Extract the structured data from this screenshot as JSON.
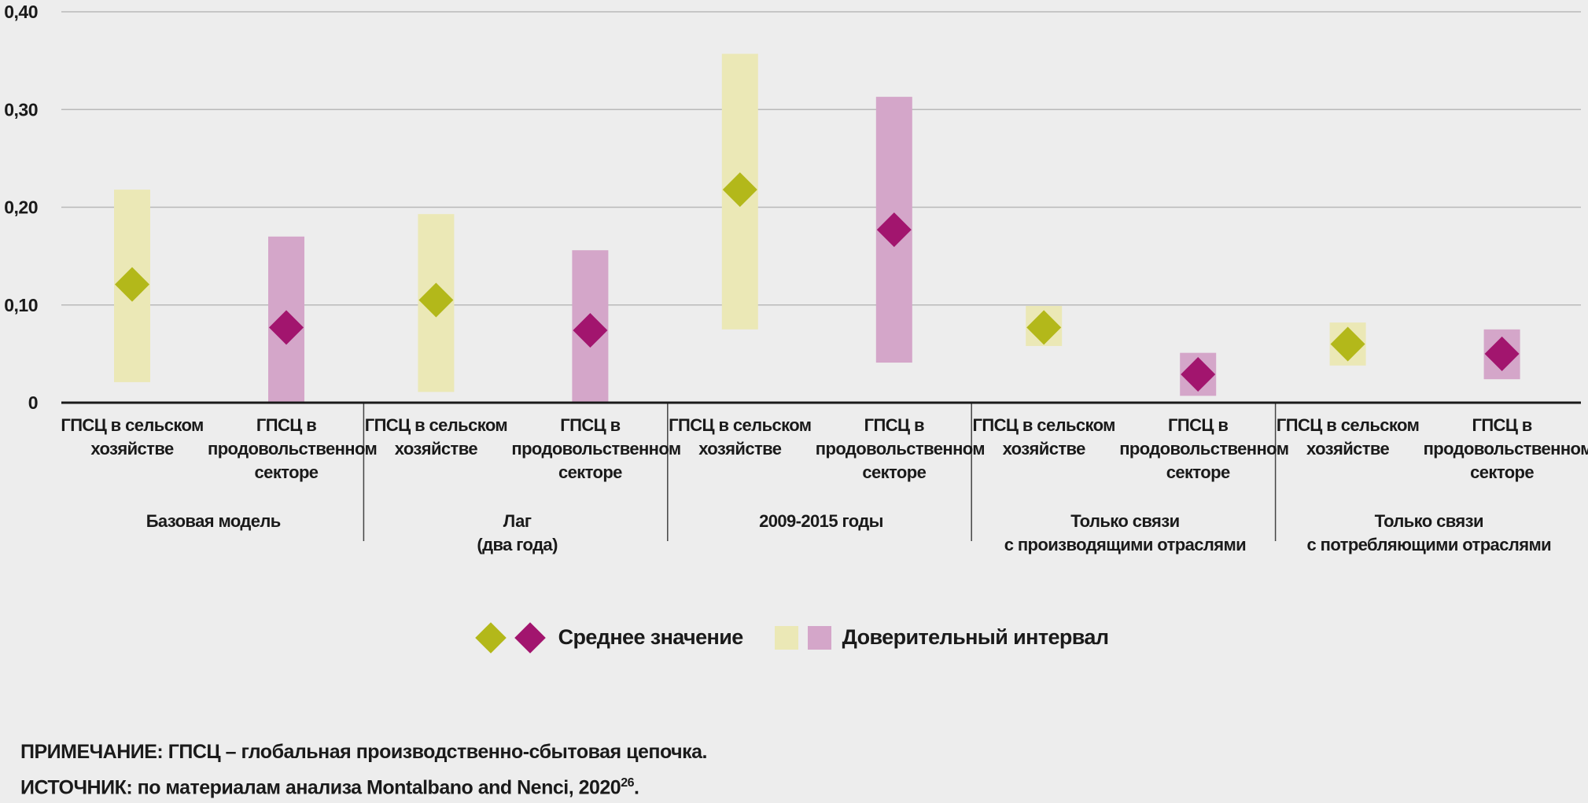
{
  "chart_data": {
    "type": "interval",
    "ylim": [
      0,
      0.4
    ],
    "yticks": [
      0,
      0.1,
      0.2,
      0.3,
      0.4
    ],
    "ytick_labels": [
      "0",
      "0,10",
      "0,20",
      "0,30",
      "0,40"
    ],
    "colors": {
      "agri_mean": "#b3b81a",
      "agri_ci": "#ebe8b6",
      "food_mean": "#a2156e",
      "food_ci": "#d4a6c9",
      "grid": "#b9b9b9",
      "axis": "#1a1a1a"
    },
    "groups": [
      {
        "label": "Базовая модель",
        "label_lines": [
          "Базовая модель"
        ],
        "items": [
          {
            "series": "agri",
            "label_lines": [
              "ГПСЦ в сельском",
              "хозяйстве"
            ],
            "mean": 0.121,
            "ci_low": 0.021,
            "ci_high": 0.218
          },
          {
            "series": "food",
            "label_lines": [
              "ГПСЦ в",
              "продовольственном",
              "секторе"
            ],
            "mean": 0.077,
            "ci_low": 0.0,
            "ci_high": 0.17
          }
        ]
      },
      {
        "label": "Лаг (два года)",
        "label_lines": [
          "Лаг",
          "(два года)"
        ],
        "items": [
          {
            "series": "agri",
            "label_lines": [
              "ГПСЦ в сельском",
              "хозяйстве"
            ],
            "mean": 0.105,
            "ci_low": 0.011,
            "ci_high": 0.193
          },
          {
            "series": "food",
            "label_lines": [
              "ГПСЦ в",
              "продовольственном",
              "секторе"
            ],
            "mean": 0.074,
            "ci_low": 0.0,
            "ci_high": 0.156
          }
        ]
      },
      {
        "label": "2009-2015 годы",
        "label_lines": [
          "2009-2015 годы"
        ],
        "items": [
          {
            "series": "agri",
            "label_lines": [
              "ГПСЦ в сельском",
              "хозяйстве"
            ],
            "mean": 0.218,
            "ci_low": 0.075,
            "ci_high": 0.357
          },
          {
            "series": "food",
            "label_lines": [
              "ГПСЦ в",
              "продовольственном",
              "секторе"
            ],
            "mean": 0.177,
            "ci_low": 0.041,
            "ci_high": 0.313
          }
        ]
      },
      {
        "label": "Только связи с производящими отраслями",
        "label_lines": [
          "Только связи",
          "с производящими отраслями"
        ],
        "items": [
          {
            "series": "agri",
            "label_lines": [
              "ГПСЦ в сельском",
              "хозяйстве"
            ],
            "mean": 0.077,
            "ci_low": 0.058,
            "ci_high": 0.099
          },
          {
            "series": "food",
            "label_lines": [
              "ГПСЦ в",
              "продовольственном",
              "секторе"
            ],
            "mean": 0.029,
            "ci_low": 0.007,
            "ci_high": 0.051
          }
        ]
      },
      {
        "label": "Только связи с потребляющими отраслями",
        "label_lines": [
          "Только связи",
          "с потребляющими отраслями"
        ],
        "items": [
          {
            "series": "agri",
            "label_lines": [
              "ГПСЦ в сельском",
              "хозяйстве"
            ],
            "mean": 0.06,
            "ci_low": 0.038,
            "ci_high": 0.082
          },
          {
            "series": "food",
            "label_lines": [
              "ГПСЦ в",
              "продовольственном",
              "секторе"
            ],
            "mean": 0.05,
            "ci_low": 0.024,
            "ci_high": 0.075
          }
        ]
      }
    ],
    "legend": {
      "mean_label": "Среднее значение",
      "ci_label": "Доверительный интервал"
    }
  },
  "notes": {
    "note": "ПРИМЕЧАНИЕ: ГПСЦ – глобальная производственно-сбытовая цепочка.",
    "source_text": "ИСТОЧНИК: по материалам анализа Montalbano and Nenci, 2020",
    "source_sup": "26",
    "source_end": "."
  }
}
